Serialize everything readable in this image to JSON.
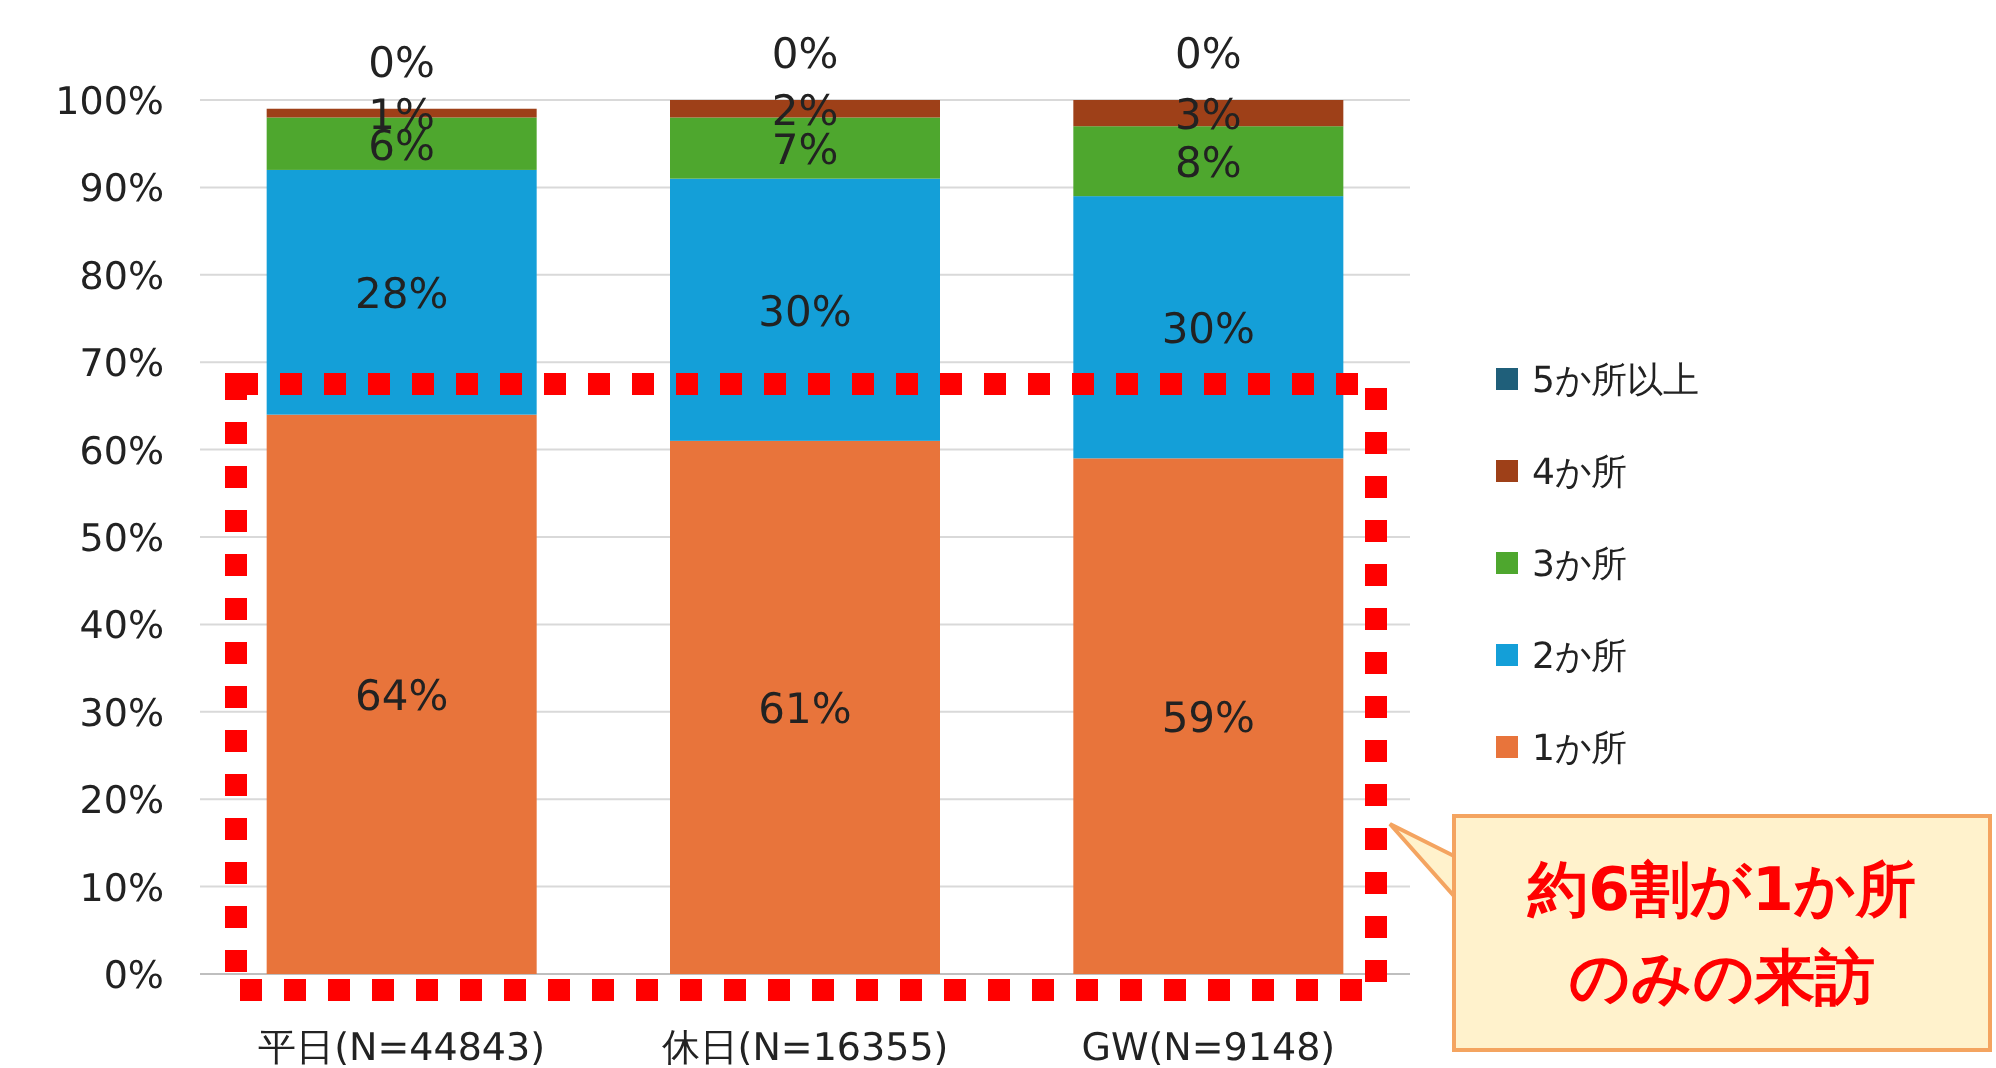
{
  "chart_data": {
    "type": "bar",
    "stacked": true,
    "categories": [
      "平日(N=44843)",
      "休日(N=16355)",
      "GW(N=9148)"
    ],
    "series": [
      {
        "name": "1か所",
        "color": "#e8743b",
        "values": [
          64,
          61,
          59
        ],
        "value_labels": [
          "64%",
          "61%",
          "59%"
        ]
      },
      {
        "name": "2か所",
        "color": "#149fd8",
        "values": [
          28,
          30,
          30
        ],
        "value_labels": [
          "28%",
          "30%",
          "30%"
        ]
      },
      {
        "name": "3か所",
        "color": "#4ea72e",
        "values": [
          6,
          7,
          8
        ],
        "value_labels": [
          "6%",
          "7%",
          "8%"
        ]
      },
      {
        "name": "4か所",
        "color": "#9e4018",
        "values": [
          1,
          2,
          3
        ],
        "value_labels": [
          "1%",
          "2%",
          "3%"
        ]
      },
      {
        "name": "5か所以上",
        "color": "#1f5f7a",
        "values": [
          0,
          0,
          0
        ],
        "value_labels": [
          "0%",
          "0%",
          "0%"
        ]
      }
    ],
    "ylim": [
      0,
      100
    ],
    "yticks": [
      {
        "value": 0,
        "label": "0%"
      },
      {
        "value": 10,
        "label": "10%"
      },
      {
        "value": 20,
        "label": "20%"
      },
      {
        "value": 30,
        "label": "30%"
      },
      {
        "value": 40,
        "label": "40%"
      },
      {
        "value": 50,
        "label": "50%"
      },
      {
        "value": 60,
        "label": "60%"
      },
      {
        "value": 70,
        "label": "70%"
      },
      {
        "value": 80,
        "label": "80%"
      },
      {
        "value": 90,
        "label": "90%"
      },
      {
        "value": 100,
        "label": "100%"
      }
    ],
    "grid": "y",
    "legend": "right",
    "annotations": [
      "約6割が1か所",
      "のみの来訪"
    ]
  }
}
